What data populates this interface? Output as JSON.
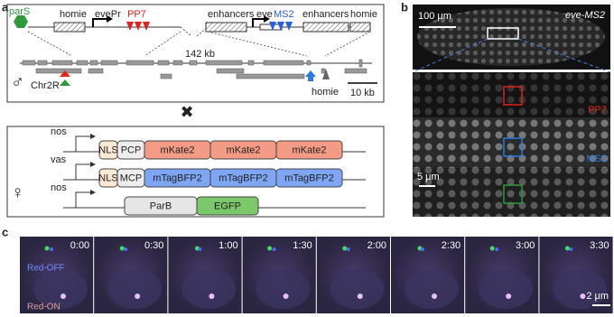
{
  "panel_a": {
    "label": "a",
    "construct": {
      "pars": "parS",
      "homie_left": "homie",
      "evepr": "evePr",
      "pp7": "PP7",
      "enhancers_left": "enhancers",
      "eve": "eve",
      "ms2": "MS2",
      "enhancers_right": "enhancers",
      "homie_right": "homie"
    },
    "distance": "142 kb",
    "chromosome": "Chr2R",
    "homie_locus": "homie",
    "scale": "10 kb",
    "transgenes": [
      {
        "promoter": "nos",
        "parts": [
          "NLS",
          "PCP",
          "mKate2",
          "mKate2",
          "mKate2"
        ]
      },
      {
        "promoter": "vas",
        "parts": [
          "NLS",
          "MCP",
          "mTagBFP2",
          "mTagBFP2",
          "mTagBFP2"
        ]
      },
      {
        "promoter": "nos",
        "parts": [
          "ParB",
          "EGFP"
        ]
      }
    ]
  },
  "panel_b": {
    "label": "b",
    "scale_large": "100 μm",
    "title": "eve-MS2",
    "pp7": "PP7",
    "ms2": "MS2",
    "scale_small": "5 μm"
  },
  "panel_c": {
    "label": "c",
    "times": [
      "0:00",
      "0:30",
      "1:00",
      "1:30",
      "2:00",
      "2:30",
      "3:00",
      "3:30"
    ],
    "red_off": "Red-OFF",
    "red_on": "Red-ON",
    "scale": "2 μm"
  }
}
